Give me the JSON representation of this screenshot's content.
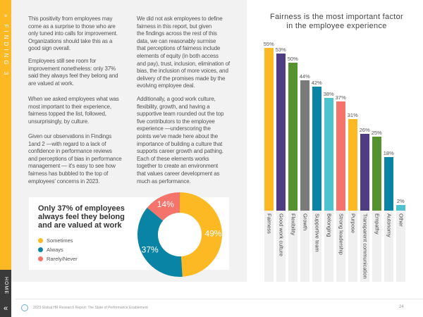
{
  "sidebar": {
    "section_label": "» FINDING 3",
    "home_label": "HOME",
    "home_chevron": "«",
    "accent": "#FDB924",
    "dark": "#3a3a3a"
  },
  "text": {
    "col1": [
      "This positivity from employees may\ncome as a surprise to those who are\nonly tuned into calls for improvement.\nOrganizations should take this as a\ngood sign overall.",
      "Employees still see room for\nimprovement nonetheless: only 37%\nsaid they always feel they belong and\nare valued at work.",
      "When we asked employees what was\nmost important to their experience,\nfairness topped the list, followed,\nunsurprisingly, by culture.",
      "Given our observations in Findings\n1and 2 —with regard to a lack of\nconfidence in performance reviews\nand perceptions of bias in performance\nmanagement — it's easy to see how\nfairness has bubbled to the top of\nemployees' concerns in 2023."
    ],
    "col2": [
      "We did not ask employees to define\nfairness in this report, but given\nthe findings across the rest of this\ndata, we can reasonably surmise\nthat perceptions of fairness include\nelements of equity (in both access\nand pay), trust, inclusion, elimination of\nbias, the inclusion of more voices, and\ndelivery of the promises made by the\nevolving employee deal.",
      "Additionally, a good work culture,\nflexibility, growth, and having a\nsupportive team rounded out the top\nfive contributors to the employee\nexperience —underscoring the\npoints we've made here about the\nimportance of building a culture that\nsupports career growth and pathing.\nEach of these elements works\ntogether to create an environment\nthat values career development as\nmuch as performance."
    ]
  },
  "chart_data": [
    {
      "type": "bar",
      "title": "Fairness is the most important factor\nin the employee experience",
      "categories": [
        "Fairness",
        "Good work culture",
        "Flexibility",
        "Growth",
        "Supportive team",
        "Belonging",
        "Strong leadership",
        "Purpose",
        "Transparent communication",
        "Empathy",
        "Autonomy",
        "Other"
      ],
      "values": [
        55,
        53,
        50,
        44,
        42,
        38,
        37,
        31,
        26,
        25,
        18,
        2
      ],
      "value_labels": [
        "55%",
        "53%",
        "50%",
        "44%",
        "42%",
        "38%",
        "37%",
        "31%",
        "26%",
        "25%",
        "18%",
        "2%"
      ],
      "colors": [
        "#FDB924",
        "#4F3D84",
        "#56922F",
        "#7A7A7A",
        "#0A84A5",
        "#4DC3D0",
        "#F4736A",
        "#FDB924",
        "#4F3D84",
        "#56922F",
        "#0A84A5",
        "#4DC3D0"
      ],
      "ylim": [
        0,
        55
      ],
      "grid": false
    },
    {
      "type": "pie",
      "donut": true,
      "title": "Only 37% of employees\nalways feel they belong\nand are valued at work",
      "series": [
        {
          "name": "Sometimes",
          "value": 49,
          "label": "49%",
          "color": "#FDB924"
        },
        {
          "name": "Always",
          "value": 37,
          "label": "37%",
          "color": "#0A84A5"
        },
        {
          "name": "Rarely/Never",
          "value": 14,
          "label": "14%",
          "color": "#F4736A"
        }
      ],
      "legend": "left"
    }
  ],
  "footer": {
    "logo": "b",
    "text": "2023 Global HR Research Report: The State of Performance Enablement",
    "page": "24"
  }
}
